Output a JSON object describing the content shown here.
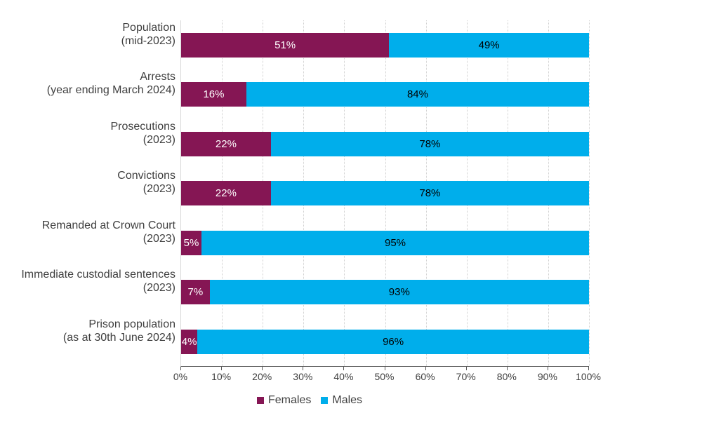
{
  "chart_data": {
    "type": "bar",
    "orientation": "horizontal",
    "stacked": true,
    "unit": "%",
    "categories": [
      {
        "lines": [
          "Population",
          "(mid-2023)"
        ]
      },
      {
        "lines": [
          "Arrests",
          "(year ending March 2024)"
        ]
      },
      {
        "lines": [
          "Prosecutions",
          "(2023)"
        ]
      },
      {
        "lines": [
          "Convictions",
          "(2023)"
        ]
      },
      {
        "lines": [
          "Remanded at Crown Court",
          "(2023)"
        ]
      },
      {
        "lines": [
          "Immediate custodial sentences",
          "(2023)"
        ]
      },
      {
        "lines": [
          "Prison population",
          "(as at 30th June 2024)"
        ]
      }
    ],
    "series": [
      {
        "name": "Females",
        "color": "#851654",
        "label_color": "#ffffff",
        "values": [
          51,
          16,
          22,
          22,
          5,
          7,
          4
        ],
        "value_labels": [
          "51%",
          "16%",
          "22%",
          "22%",
          "5%",
          "7%",
          "4%"
        ]
      },
      {
        "name": "Males",
        "color": "#00AEEB",
        "label_color": "#000000",
        "values": [
          49,
          84,
          78,
          78,
          95,
          93,
          96
        ],
        "value_labels": [
          "49%",
          "84%",
          "78%",
          "78%",
          "95%",
          "93%",
          "96%"
        ]
      }
    ],
    "x_ticks": [
      "0%",
      "10%",
      "20%",
      "30%",
      "40%",
      "50%",
      "60%",
      "70%",
      "80%",
      "90%",
      "100%"
    ],
    "xlim": [
      0,
      100
    ],
    "grid": "vertical dotted gridlines every 10%",
    "legend_position": "bottom",
    "axis_color": "#595959",
    "gridline_color": "#cfcfcf",
    "text_color": "#404040"
  }
}
